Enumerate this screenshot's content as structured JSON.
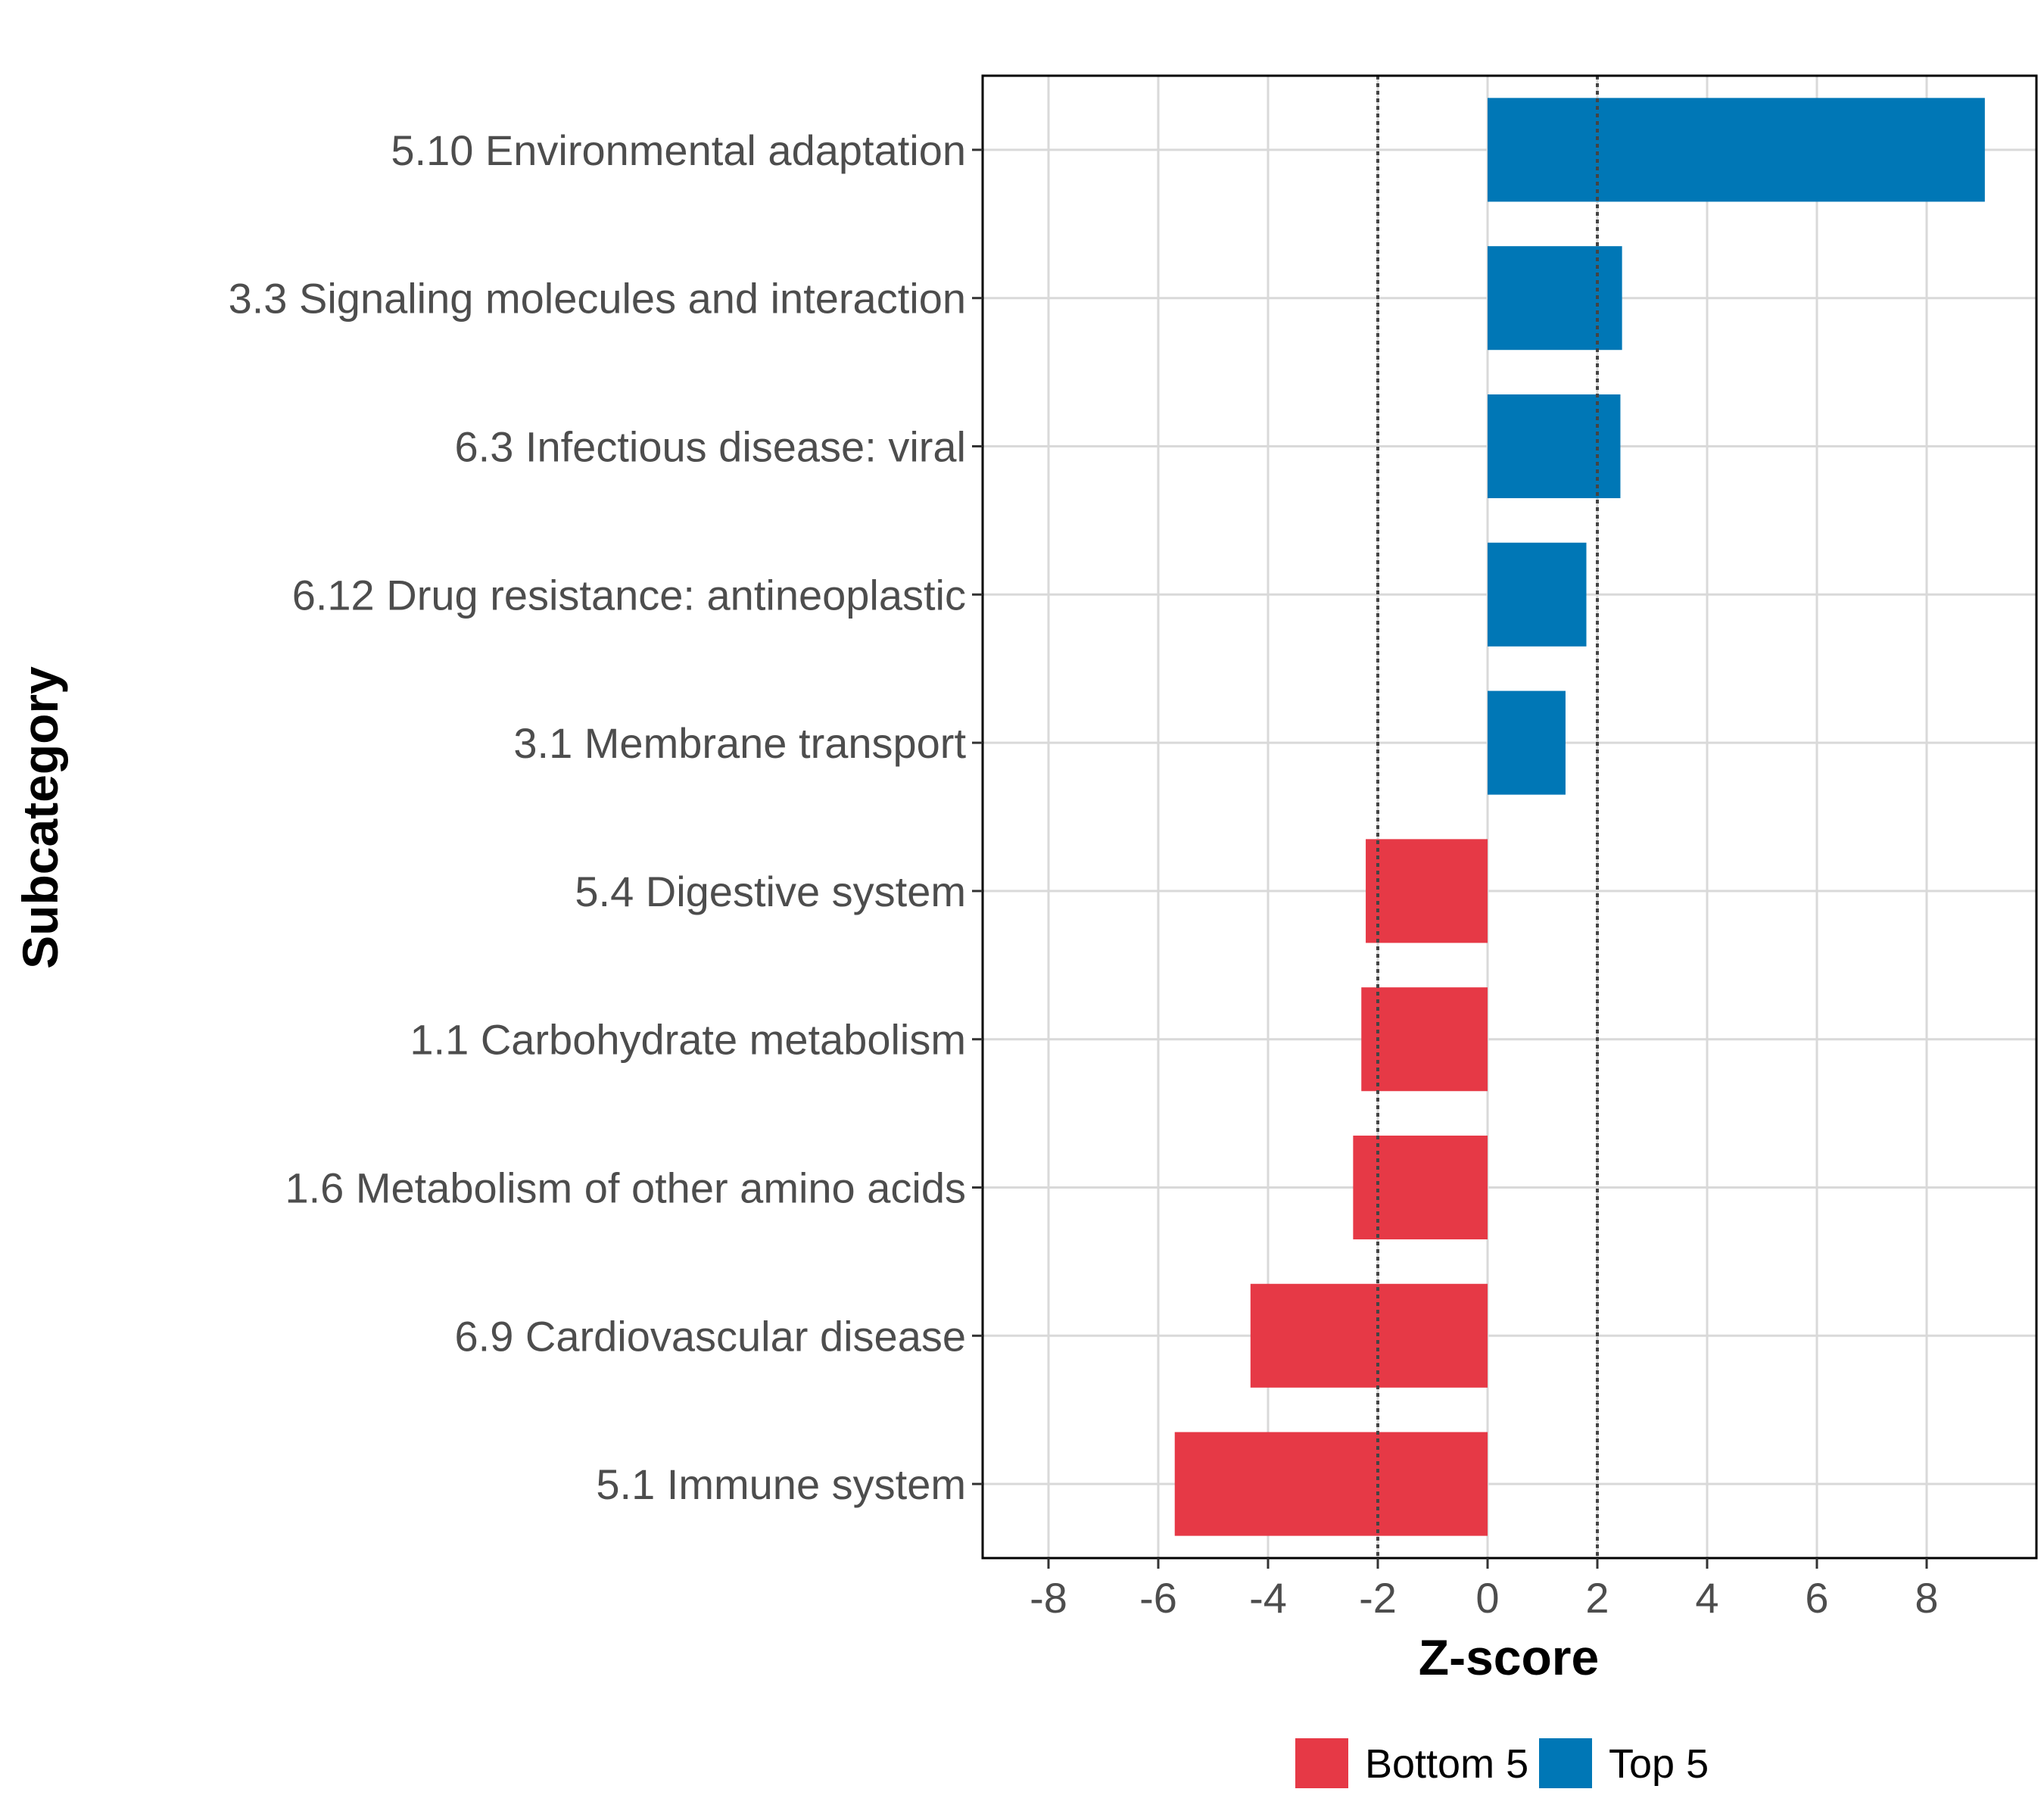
{
  "chart_data": {
    "type": "bar",
    "orientation": "horizontal",
    "title": "",
    "xlabel": "Z-score",
    "ylabel": "Subcategory",
    "xlim": [
      -9.2,
      10.0
    ],
    "x_ticks": [
      -8,
      -6,
      -4,
      -2,
      0,
      2,
      4,
      6,
      8
    ],
    "x_tick_labels": [
      "-8",
      "-6",
      "-4",
      "-2",
      "0",
      "2",
      "4",
      "6",
      "8"
    ],
    "reference_lines": [
      -2,
      2
    ],
    "grid": true,
    "categories": [
      "5.10 Environmental adaptation",
      "3.3 Signaling molecules and interaction",
      "6.3 Infectious disease: viral",
      "6.12 Drug resistance: antineoplastic",
      "3.1 Membrane transport",
      "5.4 Digestive system",
      "1.1 Carbohydrate metabolism",
      "1.6 Metabolism of other amino acids",
      "6.9 Cardiovascular disease",
      "5.1 Immune system"
    ],
    "values": [
      9.06,
      2.45,
      2.42,
      1.8,
      1.42,
      -2.22,
      -2.3,
      -2.45,
      -4.32,
      -5.7
    ],
    "groups": [
      "Top 5",
      "Top 5",
      "Top 5",
      "Top 5",
      "Top 5",
      "Bottom 5",
      "Bottom 5",
      "Bottom 5",
      "Bottom 5",
      "Bottom 5"
    ],
    "legend": {
      "placement": "bottom",
      "entries": [
        {
          "label": "Bottom 5",
          "color": "#E63946"
        },
        {
          "label": "Top 5",
          "color": "#0077B6"
        }
      ]
    },
    "colors": {
      "Bottom 5": "#E63946",
      "Top 5": "#0077B6"
    }
  }
}
